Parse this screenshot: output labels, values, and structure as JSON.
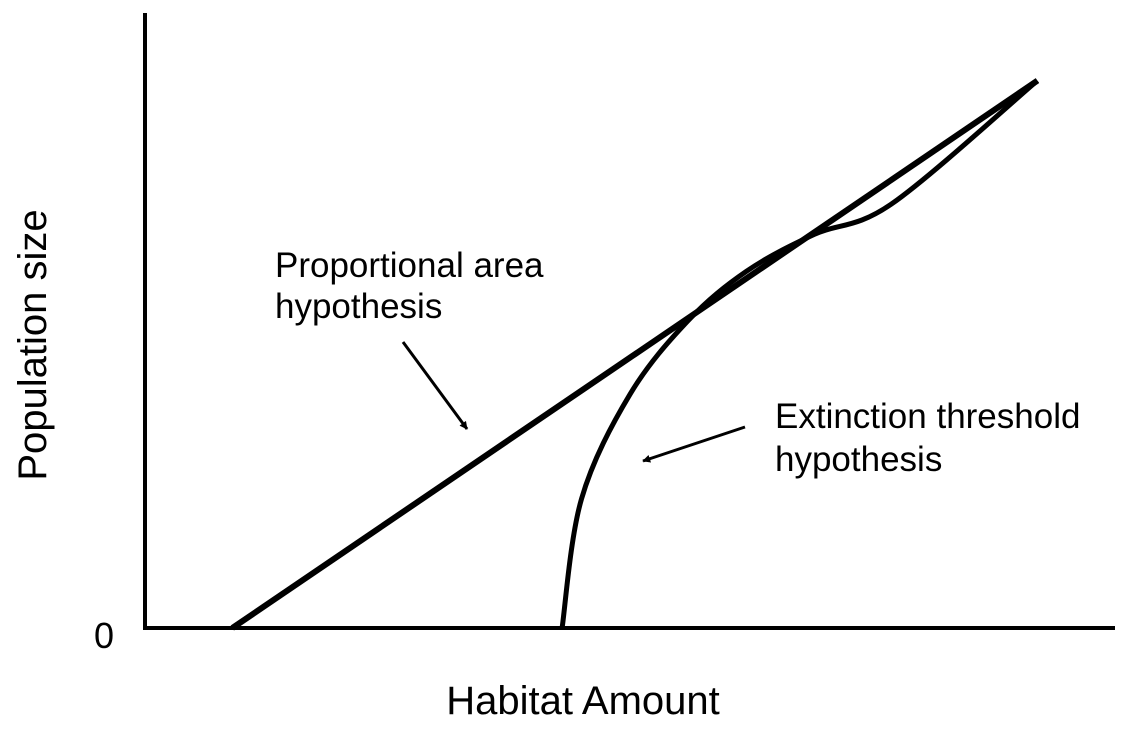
{
  "chart_data": {
    "type": "line",
    "xlabel": "Habitat Amount",
    "ylabel": "Population size",
    "y_tick_labels": [
      "0"
    ],
    "series": [
      {
        "id": "proportional",
        "x": [
          0.09,
          0.92
        ],
        "y": [
          0.0,
          0.89
        ]
      },
      {
        "id": "threshold",
        "x": [
          0.43,
          0.45,
          0.5,
          0.56,
          0.62,
          0.69,
          0.77,
          0.92
        ],
        "y": [
          0.0,
          0.21,
          0.38,
          0.5,
          0.58,
          0.64,
          0.69,
          0.89
        ]
      }
    ],
    "annotations": [
      {
        "target": "proportional",
        "lines": [
          "Proportional area",
          "hypothesis"
        ]
      },
      {
        "target": "threshold",
        "lines": [
          "Extinction threshold",
          "hypothesis"
        ]
      }
    ],
    "line_color": "#000000",
    "grid": false
  }
}
